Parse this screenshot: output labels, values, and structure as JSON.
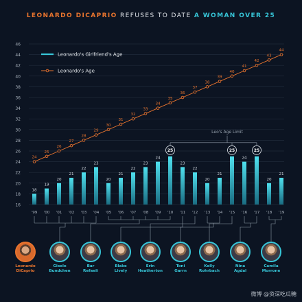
{
  "header": {
    "part1": "LEONARDO DICAPRIO",
    "part2": "REFUSES TO DATE",
    "part3": "A WOMAN OVER 25"
  },
  "colors": {
    "orange": "#e8742e",
    "cyan": "#37c6d8",
    "background": "#0c1422"
  },
  "chart_data": {
    "type": "bar",
    "categories": [
      "'99",
      "'00",
      "'01",
      "'02",
      "'03",
      "'04",
      "'05",
      "'06",
      "'07",
      "'08",
      "'09",
      "'10",
      "'11",
      "'12",
      "'13",
      "'14",
      "'15",
      "'16",
      "'17",
      "'18",
      "'19"
    ],
    "series": [
      {
        "name": "Leonardo's Girlfriend's Age",
        "type": "bar",
        "values": [
          18,
          19,
          20,
          21,
          22,
          23,
          20,
          21,
          22,
          23,
          24,
          25,
          23,
          22,
          20,
          21,
          25,
          24,
          25,
          20,
          21
        ]
      },
      {
        "name": "Leonardo's Age",
        "type": "line",
        "values": [
          24,
          25,
          26,
          27,
          28,
          29,
          30,
          31,
          32,
          33,
          34,
          35,
          36,
          37,
          38,
          39,
          40,
          41,
          42,
          43,
          44
        ]
      }
    ],
    "y_ticks": [
      16,
      18,
      20,
      22,
      24,
      26,
      28,
      30,
      32,
      34,
      36,
      38,
      40,
      42,
      44,
      46
    ],
    "ylim": [
      16,
      46
    ],
    "annotation": "Leo's Age Limit",
    "limit_value": 25,
    "grid": true,
    "legend_position": "top-left"
  },
  "people": [
    {
      "name": "Leonardo DiCaprio",
      "line1": "Leonardo",
      "line2": "DiCaprio",
      "is_leo": true
    },
    {
      "name": "Gisele Bundchen",
      "line1": "Gisele",
      "line2": "Bundchen",
      "years": [
        "'99",
        "'00",
        "'01",
        "'02",
        "'03",
        "'04"
      ]
    },
    {
      "name": "Bar Refaeli",
      "line1": "Bar",
      "line2": "Refaeli",
      "years": [
        "'05",
        "'06",
        "'07",
        "'08",
        "'09",
        "'10"
      ]
    },
    {
      "name": "Blake Lively",
      "line1": "Blake",
      "line2": "Lively",
      "years": [
        "'11"
      ]
    },
    {
      "name": "Erin Heatherton",
      "line1": "Erin",
      "line2": "Heatherton",
      "years": [
        "'12"
      ]
    },
    {
      "name": "Toni Garrn",
      "line1": "Toni",
      "line2": "Garrn",
      "years": [
        "'13",
        "'14"
      ]
    },
    {
      "name": "Kelly Rohrbach",
      "line1": "Kelly",
      "line2": "Rohrbach",
      "years": [
        "'15"
      ]
    },
    {
      "name": "Nina Agdal",
      "line1": "Nina",
      "line2": "Agdal",
      "years": [
        "'16",
        "'17"
      ]
    },
    {
      "name": "Camila Morrone",
      "line1": "Camila",
      "line2": "Morrone",
      "years": [
        "'18",
        "'19"
      ]
    }
  ],
  "watermark": "微博 @资深吃瓜糖"
}
